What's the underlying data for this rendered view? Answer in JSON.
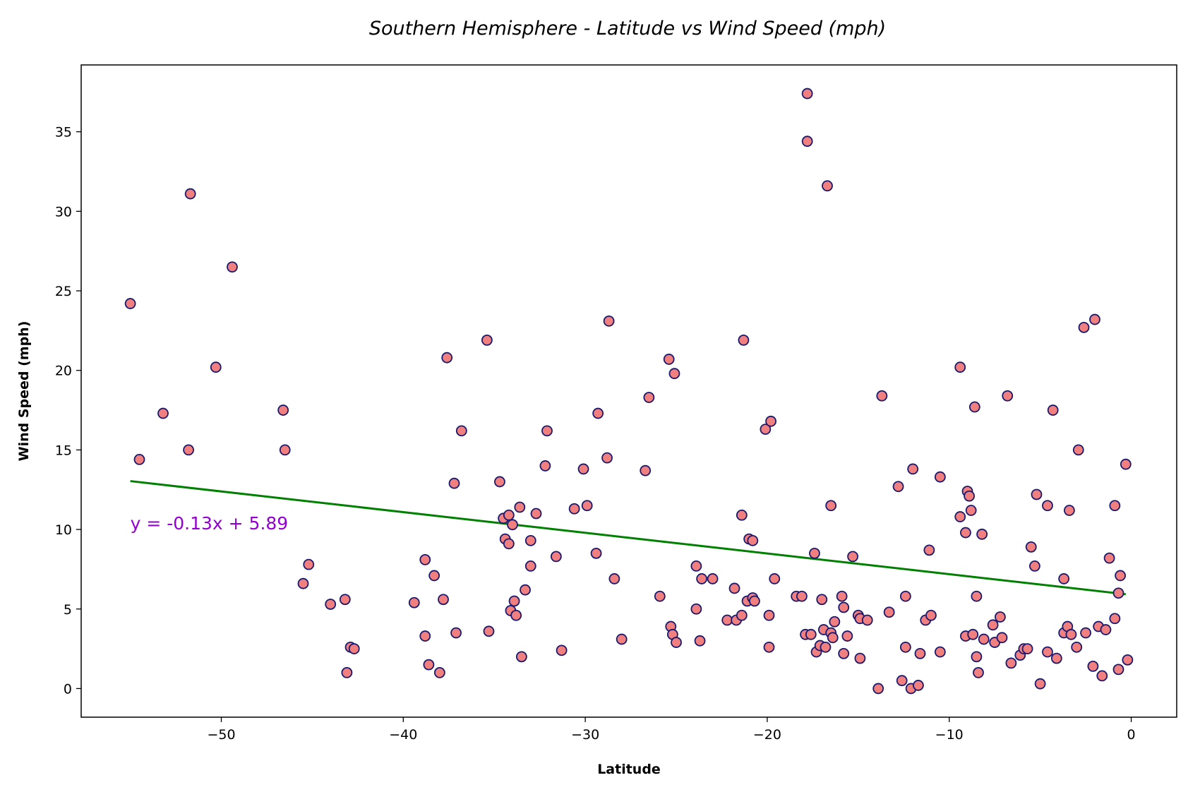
{
  "chart_data": {
    "type": "scatter",
    "title": "Southern Hemisphere - Latitude vs Wind Speed (mph)",
    "xlabel": "Latitude",
    "ylabel": "Wind Speed (mph)",
    "xlim": [
      -57.7,
      2.5
    ],
    "ylim": [
      -1.8,
      39.2
    ],
    "xticks": [
      -50,
      -40,
      -30,
      -20,
      -10,
      0
    ],
    "yticks": [
      0,
      5,
      10,
      15,
      20,
      25,
      30,
      35
    ],
    "xtick_labels": [
      "−50",
      "−40",
      "−30",
      "−20",
      "−10",
      "0"
    ],
    "ytick_labels": [
      "0",
      "5",
      "10",
      "15",
      "20",
      "25",
      "30",
      "35"
    ],
    "grid": false,
    "marker_fill": "#f08080",
    "marker_edge": "#191970",
    "regression": {
      "slope": -0.13,
      "intercept": 5.89,
      "x_range": [
        -55,
        -0.3
      ],
      "color": "#008000",
      "equation": "y = -0.13x + 5.89",
      "equation_color": "#9400d3",
      "equation_at": [
        -55,
        10
      ]
    },
    "points": [
      [
        -55.0,
        24.2
      ],
      [
        -54.5,
        14.4
      ],
      [
        -53.2,
        17.3
      ],
      [
        -51.7,
        31.1
      ],
      [
        -51.8,
        15.0
      ],
      [
        -50.3,
        20.2
      ],
      [
        -49.4,
        26.5
      ],
      [
        -46.6,
        17.5
      ],
      [
        -46.5,
        15.0
      ],
      [
        -45.5,
        6.6
      ],
      [
        -45.2,
        7.8
      ],
      [
        -44.0,
        5.3
      ],
      [
        -43.2,
        5.6
      ],
      [
        -43.1,
        1.0
      ],
      [
        -42.9,
        2.6
      ],
      [
        -42.7,
        2.5
      ],
      [
        -39.4,
        5.4
      ],
      [
        -38.8,
        8.1
      ],
      [
        -38.8,
        3.3
      ],
      [
        -38.6,
        1.5
      ],
      [
        -38.3,
        7.1
      ],
      [
        -38.0,
        1.0
      ],
      [
        -37.8,
        5.6
      ],
      [
        -37.6,
        20.8
      ],
      [
        -37.2,
        12.9
      ],
      [
        -37.1,
        3.5
      ],
      [
        -36.8,
        16.2
      ],
      [
        -35.4,
        21.9
      ],
      [
        -35.3,
        3.6
      ],
      [
        -34.7,
        13.0
      ],
      [
        -34.5,
        10.7
      ],
      [
        -34.4,
        9.4
      ],
      [
        -34.2,
        10.9
      ],
      [
        -34.2,
        9.1
      ],
      [
        -34.1,
        4.9
      ],
      [
        -34.0,
        10.3
      ],
      [
        -33.9,
        5.5
      ],
      [
        -33.8,
        4.6
      ],
      [
        -33.6,
        11.4
      ],
      [
        -33.5,
        2.0
      ],
      [
        -33.3,
        6.2
      ],
      [
        -33.0,
        9.3
      ],
      [
        -33.0,
        7.7
      ],
      [
        -32.7,
        11.0
      ],
      [
        -32.2,
        14.0
      ],
      [
        -32.1,
        16.2
      ],
      [
        -31.6,
        8.3
      ],
      [
        -31.3,
        2.4
      ],
      [
        -30.6,
        11.3
      ],
      [
        -30.1,
        13.8
      ],
      [
        -29.9,
        11.5
      ],
      [
        -29.4,
        8.5
      ],
      [
        -29.3,
        17.3
      ],
      [
        -28.8,
        14.5
      ],
      [
        -28.7,
        23.1
      ],
      [
        -28.4,
        6.9
      ],
      [
        -28.0,
        3.1
      ],
      [
        -26.7,
        13.7
      ],
      [
        -26.5,
        18.3
      ],
      [
        -25.9,
        5.8
      ],
      [
        -25.4,
        20.7
      ],
      [
        -25.3,
        3.9
      ],
      [
        -25.2,
        3.4
      ],
      [
        -25.1,
        19.8
      ],
      [
        -25.0,
        2.9
      ],
      [
        -23.9,
        7.7
      ],
      [
        -23.9,
        5.0
      ],
      [
        -23.7,
        3.0
      ],
      [
        -23.6,
        6.9
      ],
      [
        -23.0,
        6.9
      ],
      [
        -22.2,
        4.3
      ],
      [
        -21.8,
        6.3
      ],
      [
        -21.7,
        4.3
      ],
      [
        -21.4,
        4.6
      ],
      [
        -21.4,
        10.9
      ],
      [
        -21.3,
        21.9
      ],
      [
        -21.1,
        5.5
      ],
      [
        -21.0,
        9.4
      ],
      [
        -20.8,
        9.3
      ],
      [
        -20.8,
        5.7
      ],
      [
        -20.7,
        5.5
      ],
      [
        -20.1,
        16.3
      ],
      [
        -19.9,
        4.6
      ],
      [
        -19.9,
        2.6
      ],
      [
        -19.8,
        16.8
      ],
      [
        -19.6,
        6.9
      ],
      [
        -18.4,
        5.8
      ],
      [
        -18.1,
        5.8
      ],
      [
        -17.9,
        3.4
      ],
      [
        -17.8,
        37.4
      ],
      [
        -17.8,
        34.4
      ],
      [
        -17.6,
        3.4
      ],
      [
        -17.4,
        8.5
      ],
      [
        -17.3,
        2.3
      ],
      [
        -17.1,
        2.7
      ],
      [
        -17.0,
        5.6
      ],
      [
        -16.9,
        3.7
      ],
      [
        -16.8,
        2.6
      ],
      [
        -16.7,
        31.6
      ],
      [
        -16.5,
        11.5
      ],
      [
        -16.5,
        3.5
      ],
      [
        -16.4,
        3.2
      ],
      [
        -16.3,
        4.2
      ],
      [
        -15.9,
        5.8
      ],
      [
        -15.8,
        5.1
      ],
      [
        -15.8,
        2.2
      ],
      [
        -15.6,
        3.3
      ],
      [
        -15.3,
        8.3
      ],
      [
        -15.0,
        4.6
      ],
      [
        -14.9,
        4.4
      ],
      [
        -14.9,
        1.9
      ],
      [
        -14.5,
        4.3
      ],
      [
        -13.9,
        0.0
      ],
      [
        -13.7,
        18.4
      ],
      [
        -13.3,
        4.8
      ],
      [
        -12.8,
        12.7
      ],
      [
        -12.6,
        0.5
      ],
      [
        -12.4,
        5.8
      ],
      [
        -12.4,
        2.6
      ],
      [
        -12.1,
        0.0
      ],
      [
        -12.0,
        13.8
      ],
      [
        -11.7,
        0.2
      ],
      [
        -11.6,
        2.2
      ],
      [
        -11.3,
        4.3
      ],
      [
        -11.1,
        8.7
      ],
      [
        -11.0,
        4.6
      ],
      [
        -10.5,
        13.3
      ],
      [
        -10.5,
        2.3
      ],
      [
        -9.4,
        10.8
      ],
      [
        -9.4,
        20.2
      ],
      [
        -9.1,
        9.8
      ],
      [
        -9.1,
        3.3
      ],
      [
        -9.0,
        12.4
      ],
      [
        -8.9,
        12.1
      ],
      [
        -8.8,
        11.2
      ],
      [
        -8.7,
        3.4
      ],
      [
        -8.6,
        17.7
      ],
      [
        -8.5,
        5.8
      ],
      [
        -8.5,
        2.0
      ],
      [
        -8.4,
        1.0
      ],
      [
        -8.2,
        9.7
      ],
      [
        -8.1,
        3.1
      ],
      [
        -7.6,
        4.0
      ],
      [
        -7.5,
        2.9
      ],
      [
        -7.2,
        4.5
      ],
      [
        -7.1,
        3.2
      ],
      [
        -6.8,
        18.4
      ],
      [
        -6.6,
        1.6
      ],
      [
        -6.1,
        2.1
      ],
      [
        -5.9,
        2.5
      ],
      [
        -5.7,
        2.5
      ],
      [
        -5.5,
        8.9
      ],
      [
        -5.3,
        7.7
      ],
      [
        -5.2,
        12.2
      ],
      [
        -5.0,
        0.3
      ],
      [
        -4.6,
        11.5
      ],
      [
        -4.6,
        2.3
      ],
      [
        -4.3,
        17.5
      ],
      [
        -4.1,
        1.9
      ],
      [
        -3.7,
        3.5
      ],
      [
        -3.7,
        6.9
      ],
      [
        -3.5,
        3.9
      ],
      [
        -3.4,
        11.2
      ],
      [
        -3.3,
        3.4
      ],
      [
        -3.0,
        2.6
      ],
      [
        -2.9,
        15.0
      ],
      [
        -2.6,
        22.7
      ],
      [
        -2.5,
        3.5
      ],
      [
        -2.0,
        23.2
      ],
      [
        -2.1,
        1.4
      ],
      [
        -1.8,
        3.9
      ],
      [
        -1.6,
        0.8
      ],
      [
        -1.4,
        3.7
      ],
      [
        -1.2,
        8.2
      ],
      [
        -0.9,
        11.5
      ],
      [
        -0.9,
        4.4
      ],
      [
        -0.7,
        6.0
      ],
      [
        -0.7,
        1.2
      ],
      [
        -0.6,
        7.1
      ],
      [
        -0.3,
        14.1
      ],
      [
        -0.2,
        1.8
      ]
    ]
  }
}
